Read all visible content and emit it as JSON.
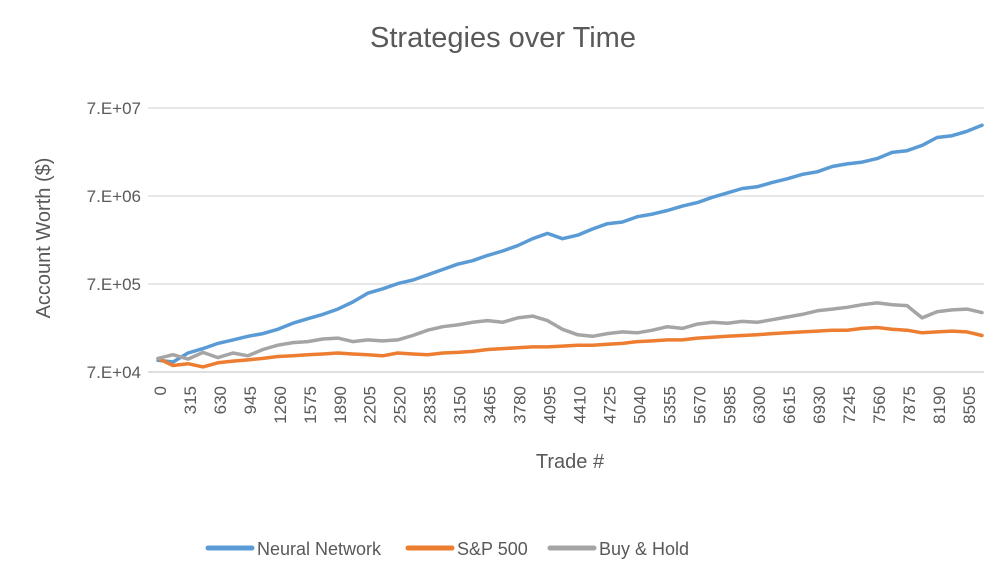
{
  "chart_data": {
    "type": "line",
    "title": "Strategies over Time",
    "xlabel": "Trade #",
    "ylabel": "Account Worth ($)",
    "y_scale": "log",
    "grid": "horizontal",
    "legend_position": "bottom",
    "x_range": [
      0,
      8663
    ],
    "y_range": [
      70000,
      70000000
    ],
    "y_tick_labels": [
      "7.E+04",
      "7.E+05",
      "7.E+06",
      "7.E+07"
    ],
    "y_tick_values": [
      70000,
      700000,
      7000000,
      70000000
    ],
    "x_ticks": [
      0,
      315,
      630,
      945,
      1260,
      1575,
      1890,
      2205,
      2520,
      2835,
      3150,
      3465,
      3780,
      4095,
      4410,
      4725,
      5040,
      5355,
      5670,
      5985,
      6300,
      6615,
      6930,
      7245,
      7560,
      7875,
      8190,
      8505
    ],
    "x": [
      0,
      158,
      315,
      473,
      630,
      788,
      945,
      1103,
      1260,
      1418,
      1575,
      1733,
      1890,
      2048,
      2205,
      2363,
      2520,
      2678,
      2835,
      2993,
      3150,
      3308,
      3465,
      3623,
      3780,
      3938,
      4095,
      4253,
      4410,
      4568,
      4725,
      4883,
      5040,
      5198,
      5355,
      5513,
      5670,
      5828,
      5985,
      6143,
      6300,
      6458,
      6615,
      6773,
      6930,
      7088,
      7245,
      7403,
      7560,
      7718,
      7875,
      8033,
      8190,
      8348,
      8505,
      8663
    ],
    "series": [
      {
        "name": "Neural Network",
        "color": "#5B9BD5",
        "values": [
          95000,
          91000,
          115000,
          129000,
          148000,
          162000,
          178000,
          191000,
          214000,
          251000,
          282000,
          316000,
          363000,
          437000,
          550000,
          617000,
          708000,
          776000,
          891000,
          1023000,
          1175000,
          1288000,
          1479000,
          1660000,
          1905000,
          2290000,
          2630000,
          2290000,
          2512000,
          2951000,
          3388000,
          3548000,
          4074000,
          4365000,
          4786000,
          5370000,
          5888000,
          6761000,
          7586000,
          8511000,
          8913000,
          10000000,
          10965000,
          12303000,
          13183000,
          15136000,
          16218000,
          16982000,
          18621000,
          21878000,
          22909000,
          26303000,
          32359000,
          33884000,
          38019000,
          44668000
        ]
      },
      {
        "name": "S&P 500",
        "color": "#ED7D31",
        "values": [
          100000,
          83000,
          87000,
          80000,
          89000,
          93000,
          96000,
          100000,
          105000,
          107000,
          110000,
          112000,
          115000,
          112000,
          110000,
          107000,
          115000,
          112000,
          110000,
          115000,
          117000,
          120000,
          126000,
          129000,
          132000,
          135000,
          135000,
          138000,
          141000,
          141000,
          145000,
          148000,
          155000,
          158000,
          162000,
          162000,
          170000,
          174000,
          178000,
          182000,
          186000,
          191000,
          195000,
          200000,
          204000,
          209000,
          209000,
          219000,
          224000,
          214000,
          209000,
          195000,
          200000,
          204000,
          200000,
          182000
        ]
      },
      {
        "name": "Buy & Hold",
        "color": "#A5A5A5",
        "values": [
          100000,
          110000,
          98000,
          117000,
          102000,
          115000,
          107000,
          126000,
          141000,
          151000,
          155000,
          166000,
          170000,
          155000,
          162000,
          158000,
          162000,
          182000,
          209000,
          229000,
          240000,
          257000,
          269000,
          257000,
          288000,
          302000,
          269000,
          214000,
          186000,
          178000,
          191000,
          200000,
          195000,
          209000,
          229000,
          219000,
          245000,
          257000,
          251000,
          263000,
          257000,
          275000,
          295000,
          316000,
          347000,
          363000,
          380000,
          407000,
          427000,
          407000,
          398000,
          288000,
          339000,
          355000,
          363000,
          331000
        ]
      }
    ]
  }
}
